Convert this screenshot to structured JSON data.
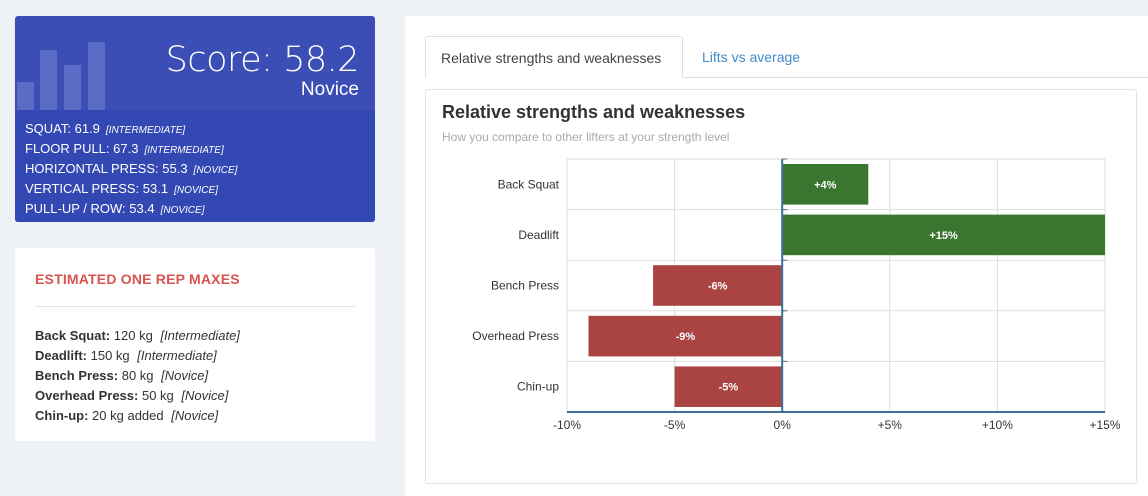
{
  "score": {
    "value_text": "Score: 58.2",
    "level": "Novice",
    "lines": [
      {
        "label": "SQUAT: 61.9",
        "level": "[INTERMEDIATE]"
      },
      {
        "label": "FLOOR PULL: 67.3",
        "level": "[INTERMEDIATE]"
      },
      {
        "label": "HORIZONTAL PRESS: 55.3",
        "level": "[NOVICE]"
      },
      {
        "label": "VERTICAL PRESS: 53.1",
        "level": "[NOVICE]"
      },
      {
        "label": "PULL-UP / ROW: 53.4",
        "level": "[NOVICE]"
      }
    ]
  },
  "one_rep_maxes": {
    "title": "ESTIMATED ONE REP MAXES",
    "rows": [
      {
        "lift": "Back Squat:",
        "value": "120 kg",
        "level": "[Intermediate]"
      },
      {
        "lift": "Deadlift:",
        "value": "150 kg",
        "level": "[Intermediate]"
      },
      {
        "lift": "Bench Press:",
        "value": "80 kg",
        "level": "[Novice]"
      },
      {
        "lift": "Overhead Press:",
        "value": "50 kg",
        "level": "[Novice]"
      },
      {
        "lift": "Chin-up:",
        "value": "20 kg added",
        "level": "[Novice]"
      }
    ]
  },
  "tabs": [
    {
      "label": "Relative strengths and weaknesses",
      "active": true
    },
    {
      "label": "Lifts vs average",
      "active": false
    }
  ],
  "chart_data": {
    "type": "bar",
    "orientation": "horizontal",
    "title": "Relative strengths and weaknesses",
    "subtitle": "How you compare to other lifters at your strength level",
    "categories": [
      "Back Squat",
      "Deadlift",
      "Bench Press",
      "Overhead Press",
      "Chin-up"
    ],
    "values": [
      4,
      15,
      -6,
      -9,
      -5
    ],
    "value_labels": [
      "+4%",
      "+15%",
      "-6%",
      "-9%",
      "-5%"
    ],
    "xlim": [
      -10,
      15
    ],
    "x_ticks": [
      -10,
      -5,
      0,
      5,
      10,
      15
    ],
    "x_tick_labels": [
      "-10%",
      "-5%",
      "0%",
      "+5%",
      "+10%",
      "+15%"
    ],
    "grid": true,
    "colors": {
      "positive": "#3b7631",
      "negative": "#a94442",
      "axis": "#3d6f9a",
      "grid": "#dddddd"
    }
  },
  "colors": {
    "score_bg": "#3b4eb5",
    "accent_red": "#d9534f",
    "link_blue": "#428bca"
  }
}
